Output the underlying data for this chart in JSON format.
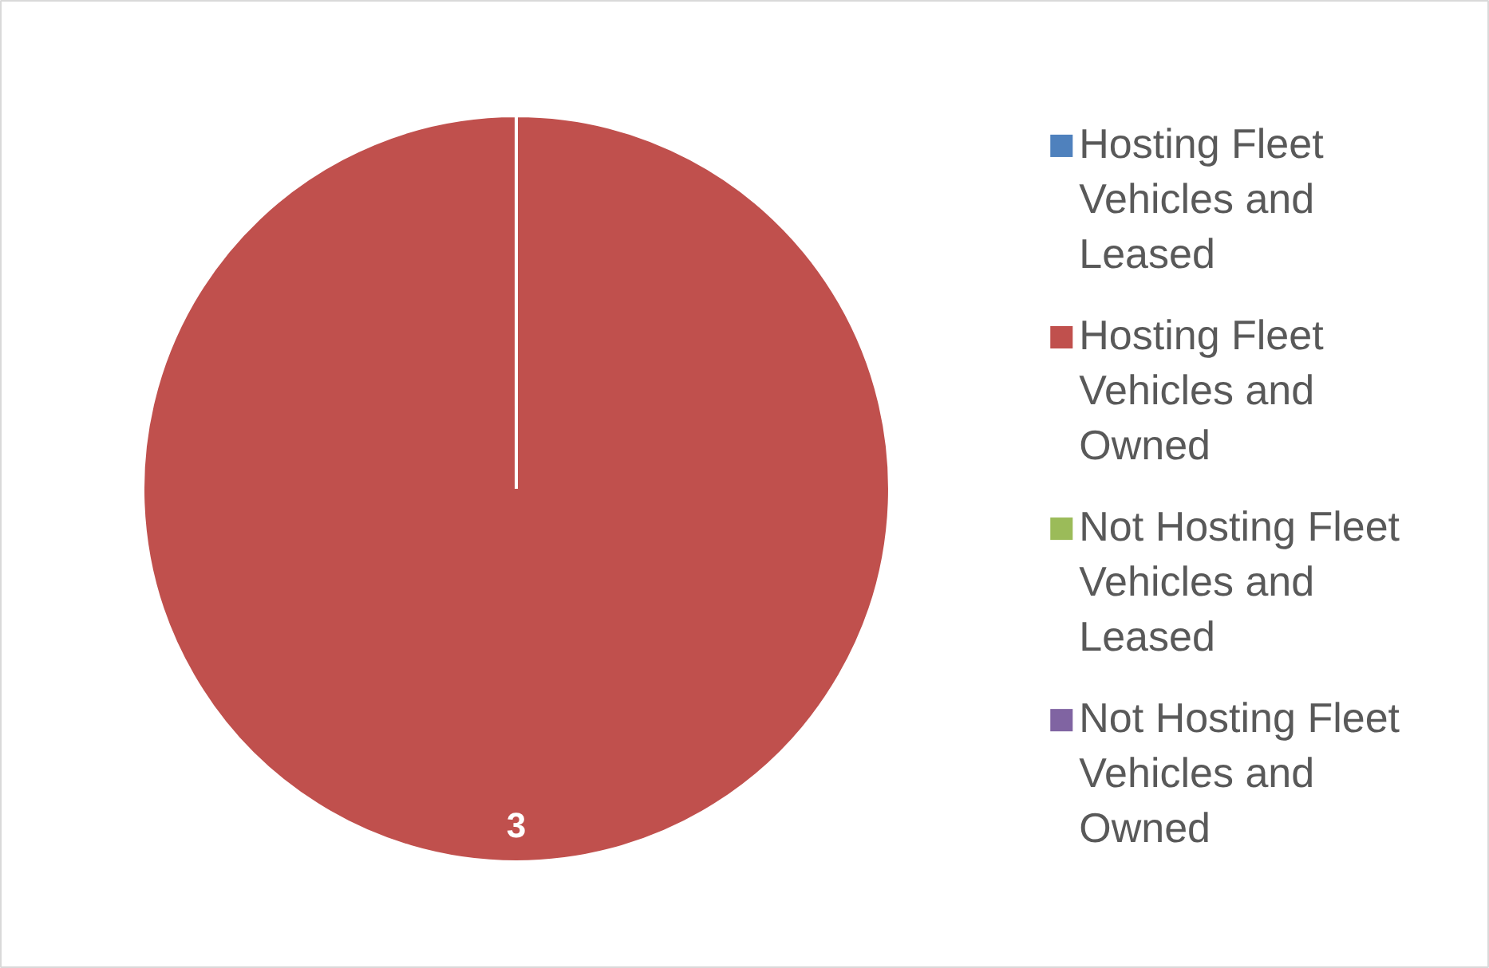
{
  "chart_data": {
    "type": "pie",
    "categories": [
      "Hosting  Fleet Vehicles and Leased",
      "Hosting  Fleet Vehicles and Owned",
      "Not Hosting Fleet Vehicles and Leased",
      "Not Hosting Fleet Vehicles and Owned"
    ],
    "values": [
      0,
      3,
      0,
      0
    ],
    "colors": [
      "#4f81bd",
      "#c0504d",
      "#9bbb59",
      "#8064a2"
    ],
    "value_labels": [
      null,
      "3",
      null,
      null
    ],
    "legend": "right"
  }
}
